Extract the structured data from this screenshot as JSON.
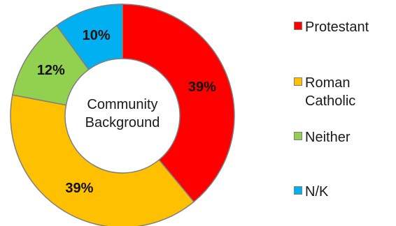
{
  "chart_data": {
    "type": "pie",
    "donut": true,
    "center_label": "Community Background",
    "categories": [
      "Protestant",
      "Roman Catholic",
      "Neither",
      "N/K"
    ],
    "values": [
      39,
      39,
      12,
      10
    ],
    "data_labels": [
      "39%",
      "39%",
      "12%",
      "10%"
    ],
    "colors": [
      "#ff0000",
      "#ffc000",
      "#92d050",
      "#00b0f0"
    ],
    "legend_position": "right"
  }
}
